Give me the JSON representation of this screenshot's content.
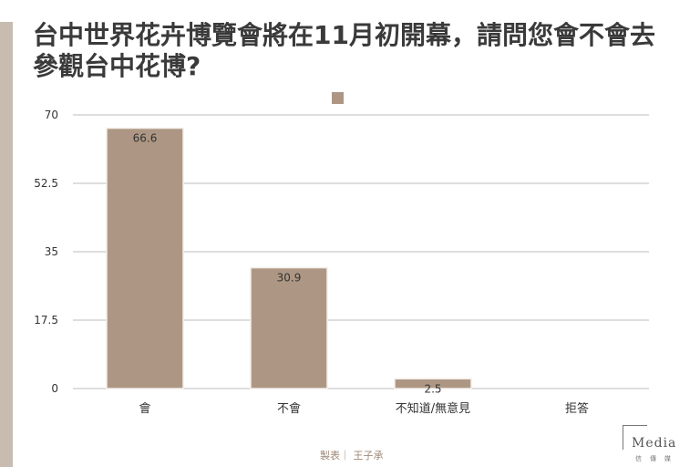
{
  "title": "台中世界花卉博覽會將在11月初開幕，請問您會不會去參觀台中花博?",
  "chart_data": {
    "type": "bar",
    "categories": [
      "會",
      "不會",
      "不知道/無意見",
      "拒答"
    ],
    "values": [
      66.6,
      30.9,
      2.5,
      null
    ],
    "value_labels": [
      "66.6",
      "30.9",
      "2.5",
      ""
    ],
    "ylim": [
      0,
      70
    ],
    "yticks": [
      "0",
      "17.5",
      "35",
      "52.5",
      "70"
    ],
    "ytick_values": [
      0,
      17.5,
      35,
      52.5,
      70
    ],
    "grid": true,
    "legend": "top-center",
    "legend_entries": [
      ""
    ],
    "colors": {
      "bar": "#ad9784",
      "bar_stroke": "#f3eee9",
      "grid": "#bdbdbd",
      "accent_bar": "#c8bbb0"
    }
  },
  "footer": {
    "credit": "製表｜ 王子承",
    "brand_word": "Media",
    "brand_sub": "信傳媒"
  }
}
